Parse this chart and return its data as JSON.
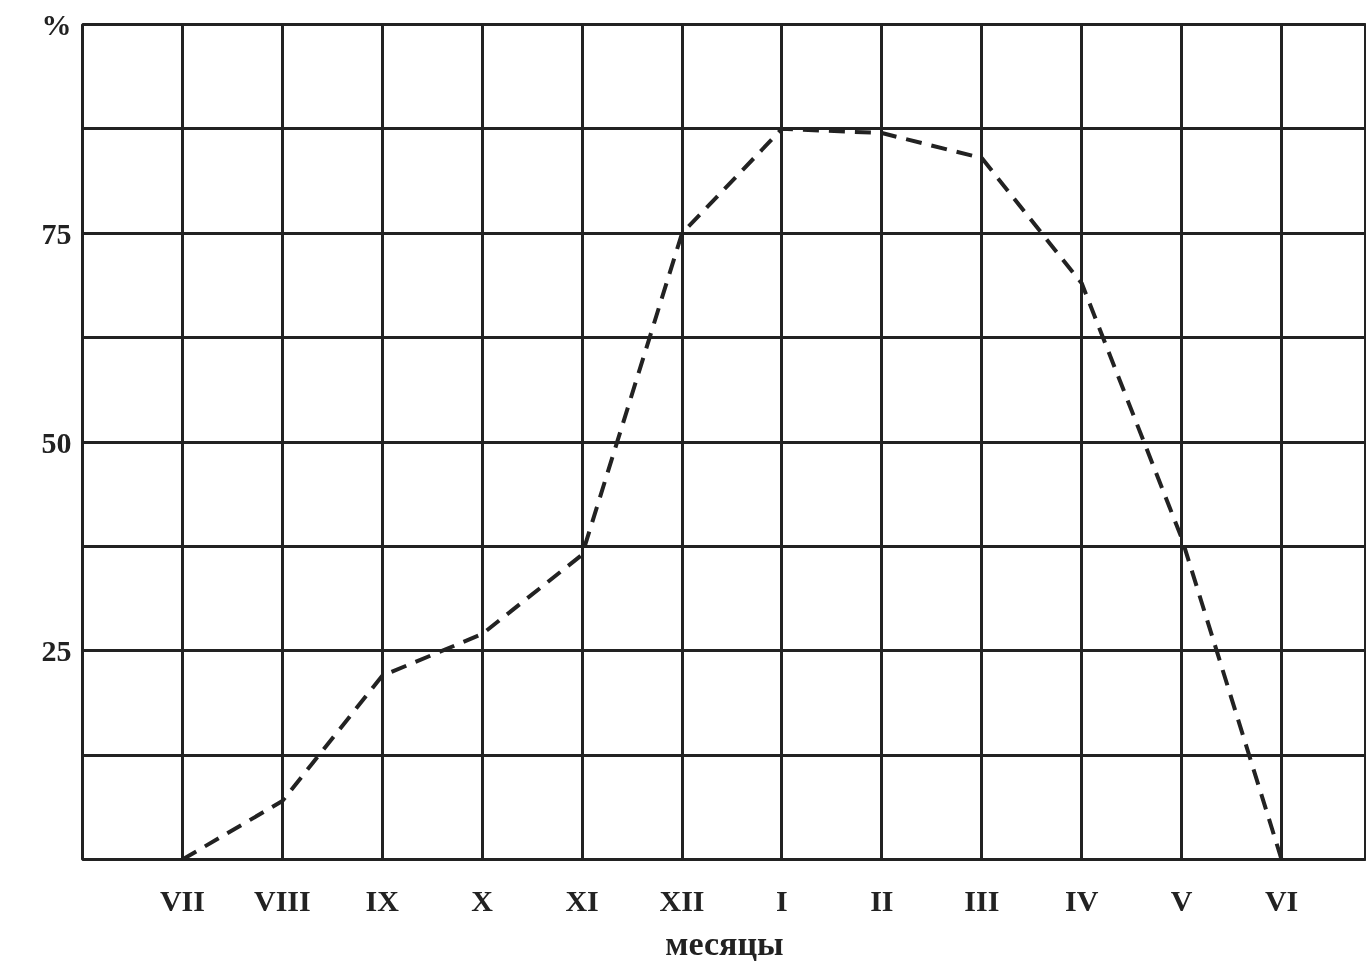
{
  "chart_data": {
    "type": "line",
    "xlabel": "месяцы",
    "categories": [
      "VII",
      "VIII",
      "IX",
      "X",
      "XI",
      "XII",
      "I",
      "II",
      "III",
      "IV",
      "V",
      "VI"
    ],
    "values": [
      0,
      7,
      22,
      27,
      36.5,
      75,
      87.5,
      87,
      84,
      69,
      38.5,
      0
    ],
    "color": "#222222",
    "line_style": "dashed",
    "marker": "none",
    "grid": true,
    "ylim": [
      0,
      100
    ],
    "yticks": [
      {
        "value": 0,
        "label": null
      },
      {
        "value": 12.5,
        "label": null
      },
      25,
      {
        "value": 37.5,
        "label": null
      },
      50,
      {
        "value": 62.5,
        "label": null
      },
      75,
      {
        "value": 87.5,
        "label": null
      },
      {
        "value": 100,
        "label": "%"
      }
    ]
  }
}
